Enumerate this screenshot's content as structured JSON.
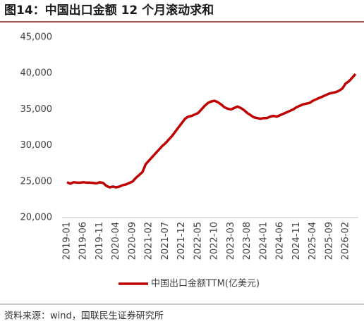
{
  "chart_data": {
    "type": "line",
    "title": "图14：中国出口金额 12 个月滚动求和",
    "source": "资料来源：wind，国联民生证券研究所",
    "categories": [
      "2019-01",
      null,
      null,
      null,
      null,
      "2019-06",
      null,
      null,
      null,
      null,
      "2019-11",
      null,
      null,
      null,
      null,
      "2020-04",
      null,
      null,
      null,
      null,
      "2020-09",
      null,
      null,
      null,
      null,
      "2021-02",
      null,
      null,
      null,
      null,
      "2021-07",
      null,
      null,
      null,
      null,
      "2021-12",
      null,
      null,
      null,
      null,
      "2022-05",
      null,
      null,
      null,
      null,
      "2022-10",
      null,
      null,
      null,
      null,
      "2023-03",
      null,
      null,
      null,
      null,
      "2023-08",
      null,
      null,
      null,
      null,
      "2024-01",
      null,
      null,
      null,
      null,
      "2024-06",
      null,
      null,
      null,
      null,
      "2024-11",
      null,
      null,
      null,
      null,
      "2025-04",
      null,
      null,
      null,
      null,
      "2025-09",
      null,
      null,
      null,
      null,
      "2026-02",
      null,
      null,
      null
    ],
    "series": [
      {
        "name": "中国出口金额TTM(亿美元)",
        "color": "#c00000",
        "values": [
          24900,
          24700,
          24900,
          24850,
          24850,
          24900,
          24850,
          24850,
          24800,
          24750,
          24900,
          24800,
          24400,
          24200,
          24300,
          24200,
          24300,
          24500,
          24600,
          24800,
          25000,
          25500,
          25900,
          26300,
          27400,
          27900,
          28400,
          28900,
          29400,
          29900,
          30300,
          30800,
          31300,
          31900,
          32500,
          33100,
          33700,
          34000,
          34100,
          34300,
          34500,
          35000,
          35500,
          35900,
          36100,
          36200,
          36000,
          35700,
          35300,
          35100,
          35000,
          35200,
          35400,
          35200,
          34900,
          34500,
          34200,
          33900,
          33800,
          33700,
          33800,
          33800,
          34000,
          34100,
          34000,
          34200,
          34400,
          34600,
          34800,
          35000,
          35300,
          35500,
          35700,
          35800,
          35900,
          36200,
          36400,
          36600,
          36800,
          37000,
          37200,
          37300,
          37400,
          37600,
          37900,
          38600,
          38900,
          39400,
          39900
        ]
      }
    ],
    "ylim": [
      20000,
      45000
    ],
    "yticks": [
      {
        "value": 20000,
        "label": "20,000"
      },
      {
        "value": 25000,
        "label": "25,000"
      },
      {
        "value": 30000,
        "label": "30,000"
      },
      {
        "value": 35000,
        "label": "35,000"
      },
      {
        "value": 40000,
        "label": "40,000"
      },
      {
        "value": 45000,
        "label": "45,000"
      }
    ],
    "grid": false
  }
}
